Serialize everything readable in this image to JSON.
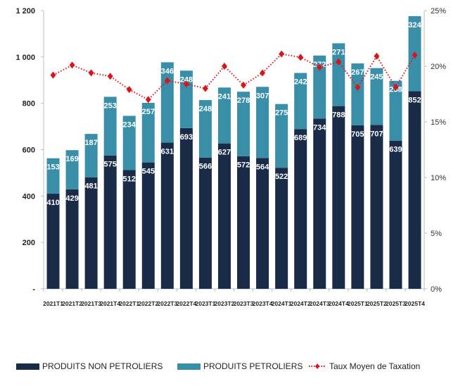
{
  "chart_data": {
    "type": "bar",
    "stacked": true,
    "title": "",
    "xlabel": "",
    "ylabel": "",
    "ylabel_right": "",
    "categories": [
      "2021T1",
      "2021T2",
      "2021T3",
      "2021T4",
      "2022T1",
      "2022T2",
      "2022T3",
      "2022T4",
      "2023T1",
      "2023T2",
      "2023T3",
      "2023T4",
      "2024T1",
      "2024T2",
      "2024T3",
      "2024T4",
      "2025T1",
      "2025T2",
      "2025T3",
      "2025T4"
    ],
    "series": [
      {
        "name": "PRODUITS NON PETROLIERS",
        "type": "bar",
        "axis": "left",
        "color": "#1a2b48",
        "values": [
          410,
          429,
          481,
          575,
          512,
          545,
          631,
          693,
          566,
          627,
          572,
          564,
          522,
          689,
          734,
          788,
          705,
          707,
          639,
          852
        ]
      },
      {
        "name": "PRODUITS PETROLIERS",
        "type": "bar",
        "axis": "left",
        "color": "#3a8fa8",
        "values": [
          153,
          169,
          187,
          253,
          234,
          257,
          346,
          248,
          248,
          241,
          278,
          307,
          275,
          242,
          272,
          271,
          267,
          245,
          258,
          324
        ]
      },
      {
        "name": "Taux Moyen de Taxation",
        "type": "line",
        "axis": "right",
        "color": "#d9141b",
        "style": "dotted",
        "marker": "diamond",
        "values": [
          19.2,
          20.1,
          19.4,
          19.1,
          17.9,
          17.0,
          18.7,
          18.4,
          18.0,
          20.0,
          18.3,
          19.4,
          21.1,
          20.8,
          19.9,
          20.4,
          18.1,
          20.9,
          18.1,
          21.0
        ]
      }
    ],
    "ylim": [
      0,
      1200
    ],
    "yticks": [
      0,
      200,
      400,
      600,
      800,
      1000,
      1200
    ],
    "ytick_labels": [
      "-",
      "200",
      "400",
      "600",
      "800",
      "1 000",
      "1 200"
    ],
    "ylim_right": [
      0,
      25
    ],
    "yticks_right": [
      0,
      5,
      10,
      15,
      20,
      25
    ],
    "ytick_labels_right": [
      "0%",
      "5%",
      "10%",
      "15%",
      "20%",
      "25%"
    ],
    "grid": false,
    "legend_position": "bottom"
  },
  "legend": {
    "items": [
      {
        "label": "PRODUITS NON PETROLIERS",
        "color": "#1a2b48"
      },
      {
        "label": "PRODUITS PETROLIERS",
        "color": "#3a8fa8"
      },
      {
        "label": "Taux Moyen de Taxation",
        "color": "#d9141b"
      }
    ]
  }
}
